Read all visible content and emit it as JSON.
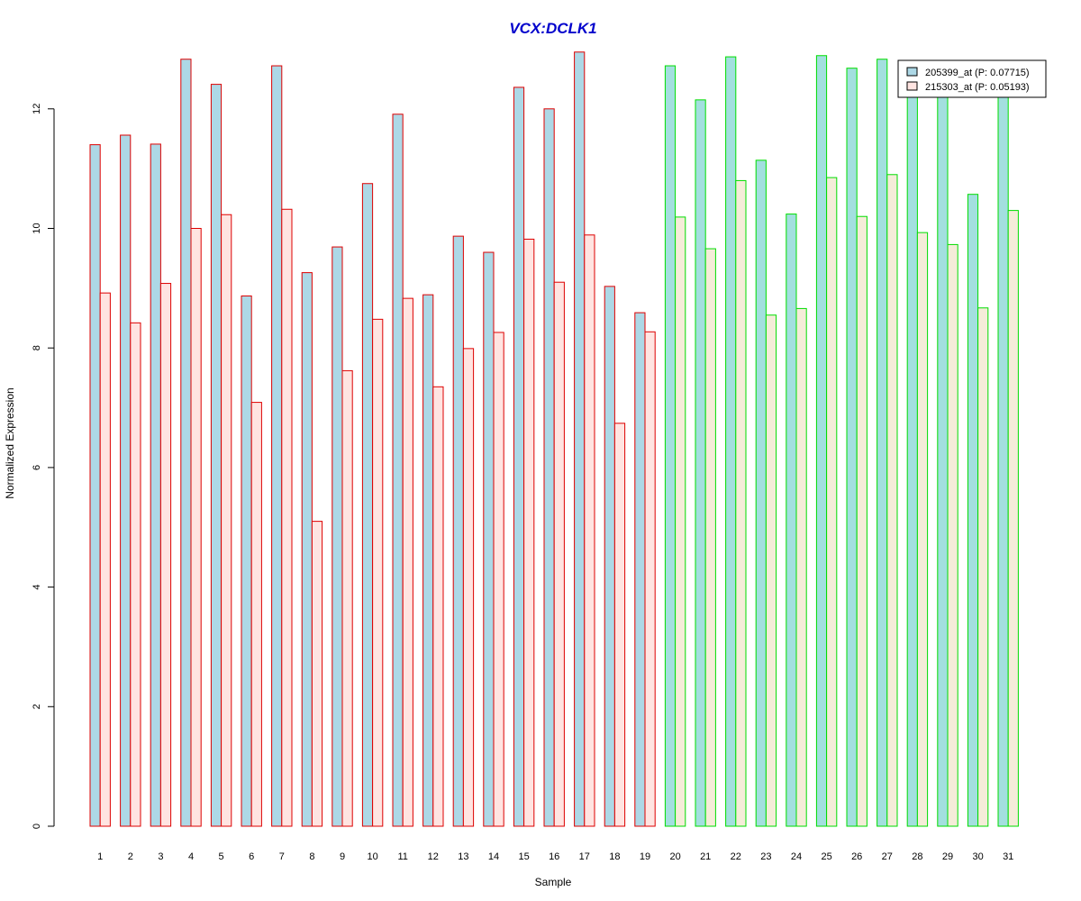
{
  "chart_data": {
    "type": "bar",
    "title": "VCX:DCLK1",
    "xlabel": "Sample",
    "ylabel": "Normalized Expression",
    "ylim": [
      0,
      13
    ],
    "yticks": [
      0,
      2,
      4,
      6,
      8,
      10,
      12
    ],
    "categories": [
      "1",
      "2",
      "3",
      "4",
      "5",
      "6",
      "7",
      "8",
      "9",
      "10",
      "11",
      "12",
      "13",
      "14",
      "15",
      "16",
      "17",
      "18",
      "19",
      "20",
      "21",
      "22",
      "23",
      "24",
      "25",
      "26",
      "27",
      "28",
      "29",
      "30",
      "31"
    ],
    "group_border_colors": [
      "#dd0000",
      "#dd0000",
      "#dd0000",
      "#dd0000",
      "#dd0000",
      "#dd0000",
      "#dd0000",
      "#dd0000",
      "#dd0000",
      "#dd0000",
      "#dd0000",
      "#dd0000",
      "#dd0000",
      "#dd0000",
      "#dd0000",
      "#dd0000",
      "#dd0000",
      "#dd0000",
      "#dd0000",
      "#00dd00",
      "#00dd00",
      "#00dd00",
      "#00dd00",
      "#00dd00",
      "#00dd00",
      "#00dd00",
      "#00dd00",
      "#00dd00",
      "#00dd00",
      "#00dd00",
      "#00dd00"
    ],
    "series": [
      {
        "name": "205399_at (P: 0.07715)",
        "fill": "#add8e6",
        "fill_alt": "#a3dfdf",
        "values": [
          11.4,
          11.56,
          11.41,
          12.83,
          12.41,
          8.87,
          12.72,
          9.26,
          9.69,
          10.75,
          11.91,
          8.89,
          9.87,
          9.6,
          12.36,
          12.0,
          12.95,
          9.03,
          8.59,
          12.72,
          12.15,
          12.87,
          11.14,
          10.24,
          12.89,
          12.68,
          12.83,
          12.3,
          12.2,
          10.57,
          12.3
        ]
      },
      {
        "name": "215303_at (P: 0.05193)",
        "fill": "#ffe4e1",
        "fill_alt": "#f5ecd9",
        "values": [
          8.92,
          8.42,
          9.08,
          10.0,
          10.23,
          7.09,
          10.32,
          5.1,
          7.62,
          8.48,
          8.83,
          7.35,
          7.99,
          8.26,
          9.82,
          9.1,
          9.89,
          6.74,
          8.27,
          10.19,
          9.66,
          10.8,
          8.55,
          8.66,
          10.85,
          10.2,
          10.9,
          9.93,
          9.73,
          8.67,
          10.3
        ]
      }
    ],
    "legend": {
      "position": "top-right",
      "entries": [
        "205399_at (P: 0.07715)",
        "215303_at (P: 0.05193)"
      ]
    },
    "grid": false
  }
}
